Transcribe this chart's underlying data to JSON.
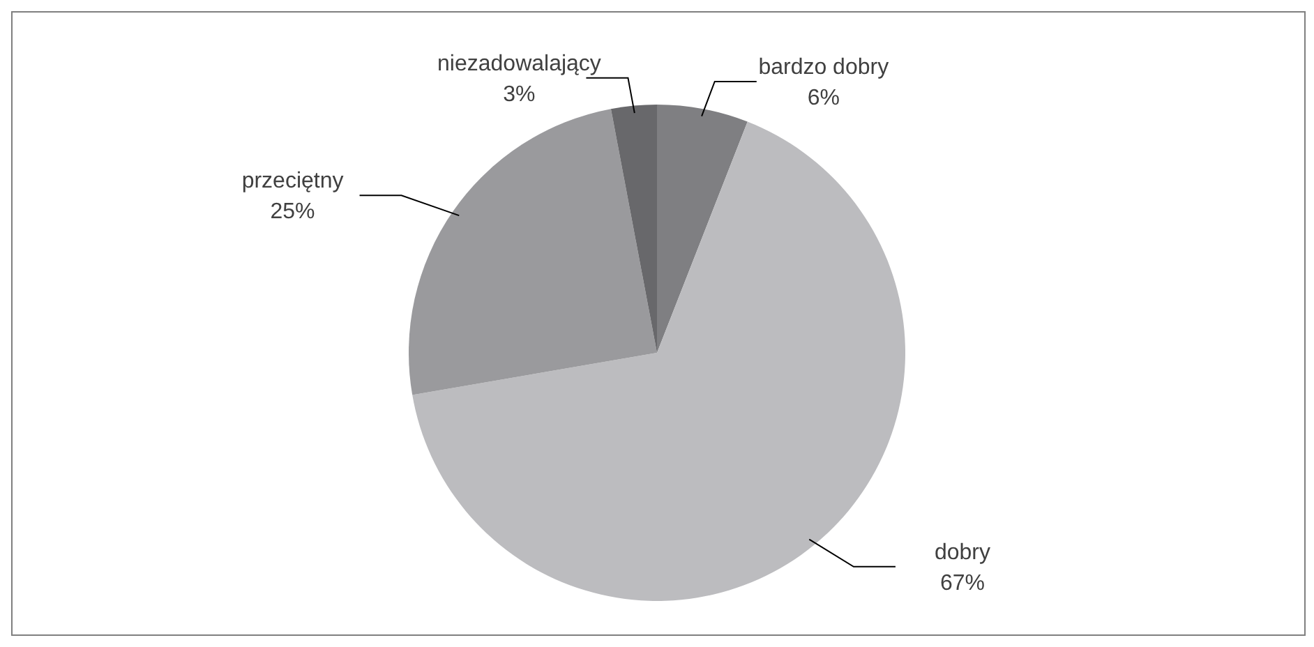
{
  "chart_data": {
    "type": "pie",
    "categories": [
      "bardzo dobry",
      "dobry",
      "przeciętny",
      "niezadowalający"
    ],
    "values": [
      6,
      67,
      25,
      3
    ],
    "value_labels": [
      "6%",
      "67%",
      "25%",
      "3%"
    ],
    "colors": [
      "#7f7f82",
      "#bcbcbf",
      "#9a9a9d",
      "#68686b"
    ],
    "legend": false
  }
}
